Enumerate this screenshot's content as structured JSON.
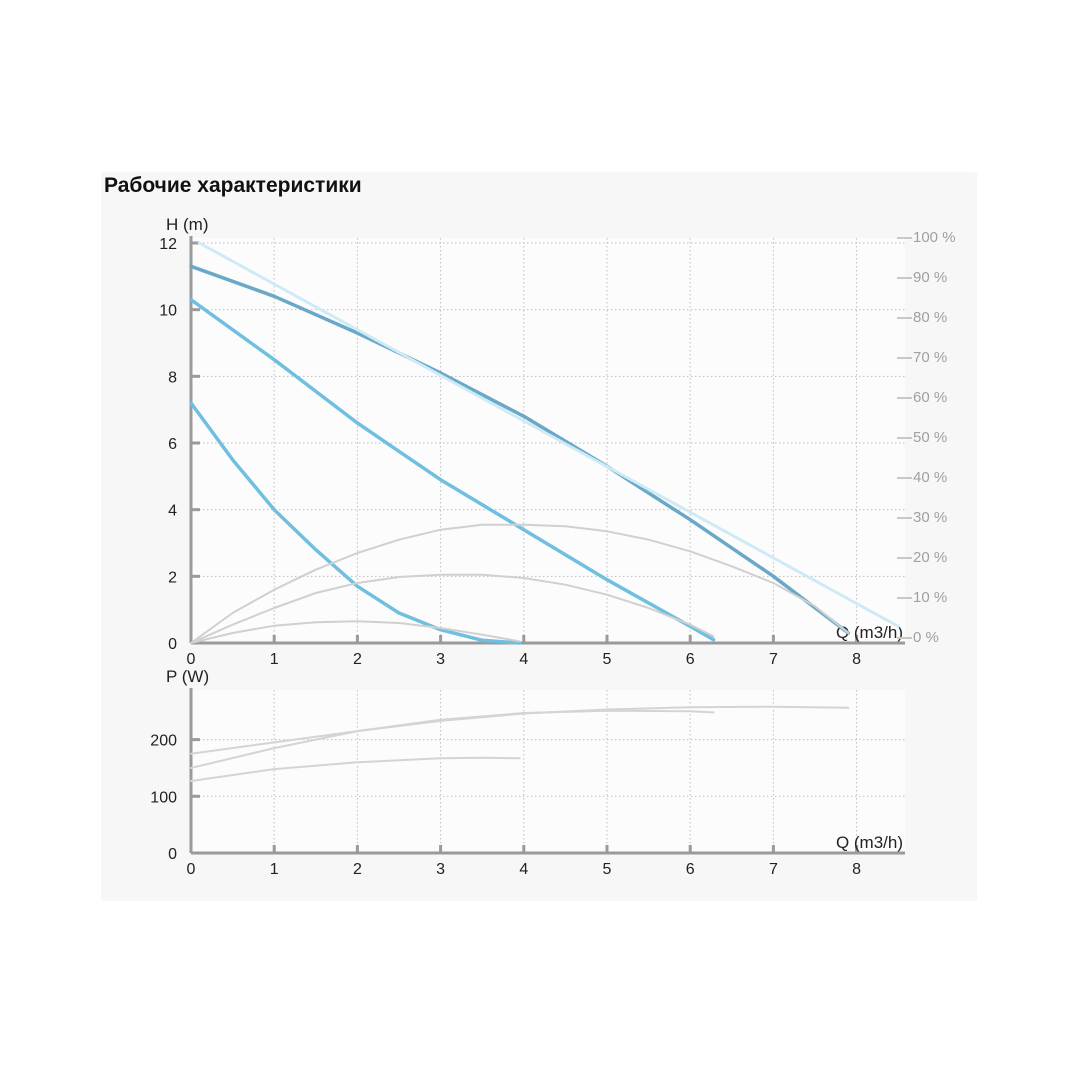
{
  "title": "Рабочие характеристики",
  "chart_data": [
    {
      "type": "line",
      "name": "H-Q",
      "ylabel": "H (m)",
      "xlabel": "Q (m3/h)",
      "xlim": [
        0,
        8.5
      ],
      "ylim": [
        0,
        12
      ],
      "x_ticks": [
        0,
        1,
        2,
        3,
        4,
        5,
        6,
        7,
        8
      ],
      "y_ticks": [
        0,
        2,
        4,
        6,
        8,
        10,
        12
      ],
      "right_axis_ticks": [
        "100 %",
        "90 %",
        "80 %",
        "70 %",
        "60 %",
        "50 %",
        "40 %",
        "30 %",
        "20 %",
        "10 %",
        "0 %"
      ],
      "grid": true,
      "series": [
        {
          "color": "#6aa8c8",
          "width": 3.5,
          "points": [
            [
              0,
              11.3
            ],
            [
              1,
              10.4
            ],
            [
              2,
              9.3
            ],
            [
              3,
              8.1
            ],
            [
              4,
              6.8
            ],
            [
              5,
              5.3
            ],
            [
              6,
              3.7
            ],
            [
              7,
              2.0
            ],
            [
              7.9,
              0.3
            ]
          ]
        },
        {
          "color": "#6fbfe0",
          "width": 3.5,
          "points": [
            [
              0,
              10.3
            ],
            [
              1,
              8.5
            ],
            [
              2,
              6.6
            ],
            [
              3,
              4.9
            ],
            [
              4,
              3.4
            ],
            [
              5,
              1.9
            ],
            [
              6,
              0.5
            ],
            [
              6.28,
              0.1
            ]
          ]
        },
        {
          "color": "#6fbfe0",
          "width": 3.5,
          "points": [
            [
              0,
              7.2
            ],
            [
              0.5,
              5.5
            ],
            [
              1,
              4.0
            ],
            [
              1.5,
              2.8
            ],
            [
              2,
              1.7
            ],
            [
              2.5,
              0.9
            ],
            [
              3,
              0.4
            ],
            [
              3.5,
              0.08
            ],
            [
              3.95,
              0.0
            ]
          ]
        },
        {
          "color": "#cdeaf6",
          "width": 3,
          "dotted": true,
          "points": [
            [
              0.1,
              12.0
            ],
            [
              8.5,
              0.5
            ]
          ]
        },
        {
          "color": "#d0d0d0",
          "width": 2,
          "points": [
            [
              0,
              0
            ],
            [
              0.5,
              0.9
            ],
            [
              1,
              1.6
            ],
            [
              1.5,
              2.2
            ],
            [
              2,
              2.7
            ],
            [
              2.5,
              3.1
            ],
            [
              3,
              3.4
            ],
            [
              3.5,
              3.55
            ],
            [
              4,
              3.55
            ],
            [
              4.5,
              3.5
            ],
            [
              5,
              3.35
            ],
            [
              5.5,
              3.1
            ],
            [
              6,
              2.75
            ],
            [
              6.5,
              2.3
            ],
            [
              7,
              1.8
            ],
            [
              7.5,
              1.1
            ],
            [
              7.9,
              0.3
            ]
          ]
        },
        {
          "color": "#d0d0d0",
          "width": 2,
          "points": [
            [
              0,
              0
            ],
            [
              0.5,
              0.55
            ],
            [
              1,
              1.05
            ],
            [
              1.5,
              1.5
            ],
            [
              2,
              1.8
            ],
            [
              2.5,
              1.98
            ],
            [
              3,
              2.05
            ],
            [
              3.5,
              2.05
            ],
            [
              4,
              1.95
            ],
            [
              4.5,
              1.75
            ],
            [
              5,
              1.45
            ],
            [
              5.5,
              1.05
            ],
            [
              6,
              0.55
            ],
            [
              6.28,
              0.2
            ]
          ]
        },
        {
          "color": "#d0d0d0",
          "width": 2,
          "points": [
            [
              0,
              0
            ],
            [
              0.5,
              0.3
            ],
            [
              1,
              0.52
            ],
            [
              1.5,
              0.62
            ],
            [
              2,
              0.65
            ],
            [
              2.5,
              0.6
            ],
            [
              3,
              0.45
            ],
            [
              3.5,
              0.25
            ],
            [
              3.95,
              0.05
            ]
          ]
        }
      ]
    },
    {
      "type": "line",
      "name": "P-Q",
      "ylabel": "P (W)",
      "xlabel": "Q (m3/h)",
      "xlim": [
        0,
        8.5
      ],
      "ylim": [
        0,
        280
      ],
      "x_ticks": [
        0,
        1,
        2,
        3,
        4,
        5,
        6,
        7,
        8
      ],
      "y_ticks": [
        0,
        100,
        200
      ],
      "grid": true,
      "series": [
        {
          "color": "#d4d4d4",
          "width": 2,
          "points": [
            [
              0,
              175
            ],
            [
              1,
              195
            ],
            [
              2,
              215
            ],
            [
              3,
              233
            ],
            [
              4,
              246
            ],
            [
              5,
              253
            ],
            [
              6,
              257
            ],
            [
              7,
              258
            ],
            [
              7.9,
              256
            ]
          ]
        },
        {
          "color": "#d4d4d4",
          "width": 2,
          "points": [
            [
              0,
              150
            ],
            [
              1,
              185
            ],
            [
              2,
              215
            ],
            [
              3,
              235
            ],
            [
              4,
              247
            ],
            [
              5,
              251
            ],
            [
              6,
              250
            ],
            [
              6.28,
              248
            ]
          ]
        },
        {
          "color": "#d4d4d4",
          "width": 2,
          "points": [
            [
              0,
              127
            ],
            [
              1,
              148
            ],
            [
              2,
              160
            ],
            [
              3,
              167
            ],
            [
              3.5,
              168
            ],
            [
              3.95,
              167
            ]
          ]
        }
      ]
    }
  ]
}
